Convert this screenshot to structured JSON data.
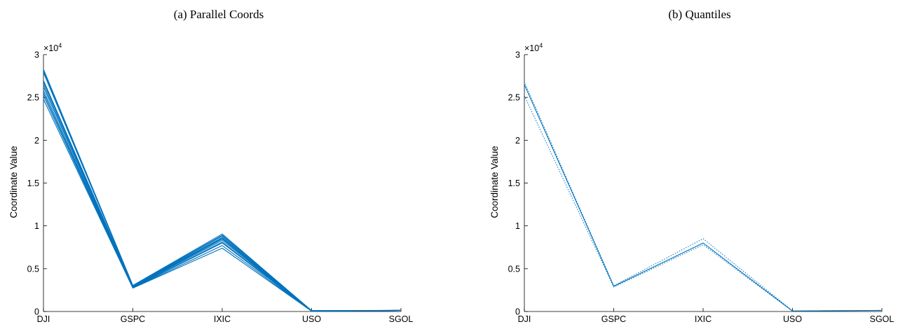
{
  "chart_data": [
    {
      "type": "line",
      "title": "(a) Parallel Coords",
      "xlabel": "",
      "ylabel": "Coordinate Value",
      "y_exponent_label": "×10",
      "y_exponent": "4",
      "categories": [
        "DJI",
        "GSPC",
        "IXIC",
        "USO",
        "SGOL"
      ],
      "ylim": [
        0,
        30000
      ],
      "yticks": [
        0,
        5000,
        10000,
        15000,
        20000,
        25000,
        30000
      ],
      "ytick_labels": [
        "0",
        "0.5",
        "1",
        "1.5",
        "2",
        "2.5",
        "3"
      ],
      "color": "#0072BD",
      "line_style": "solid",
      "series": [
        {
          "values": [
            28300,
            3050,
            9050,
            110,
            130
          ]
        },
        {
          "values": [
            28100,
            3000,
            8900,
            100,
            130
          ]
        },
        {
          "values": [
            27900,
            2980,
            8800,
            90,
            130
          ]
        },
        {
          "values": [
            27000,
            2950,
            8650,
            80,
            130
          ]
        },
        {
          "values": [
            26800,
            2900,
            8550,
            70,
            130
          ]
        },
        {
          "values": [
            26500,
            2880,
            8450,
            60,
            130
          ]
        },
        {
          "values": [
            26200,
            2850,
            8300,
            50,
            130
          ]
        },
        {
          "values": [
            25800,
            2800,
            8100,
            45,
            130
          ]
        },
        {
          "values": [
            25500,
            2780,
            8000,
            40,
            130
          ]
        },
        {
          "values": [
            25200,
            2750,
            7700,
            35,
            130
          ]
        },
        {
          "values": [
            24800,
            2730,
            7400,
            30,
            130
          ]
        }
      ]
    },
    {
      "type": "line",
      "title": "(b) Quantiles",
      "xlabel": "",
      "ylabel": "Coordinate Value",
      "y_exponent_label": "×10",
      "y_exponent": "4",
      "categories": [
        "DJI",
        "GSPC",
        "IXIC",
        "USO",
        "SGOL"
      ],
      "ylim": [
        0,
        30000
      ],
      "yticks": [
        0,
        5000,
        10000,
        15000,
        20000,
        25000,
        30000
      ],
      "ytick_labels": [
        "0",
        "0.5",
        "1",
        "1.5",
        "2",
        "2.5",
        "3"
      ],
      "color": "#0072BD",
      "series": [
        {
          "style": "solid",
          "values": [
            26500,
            2950,
            8000,
            60,
            130
          ]
        },
        {
          "style": "dotted",
          "values": [
            26800,
            3000,
            8500,
            80,
            130
          ]
        },
        {
          "style": "dotted",
          "values": [
            25200,
            2850,
            7800,
            40,
            130
          ]
        }
      ]
    }
  ]
}
